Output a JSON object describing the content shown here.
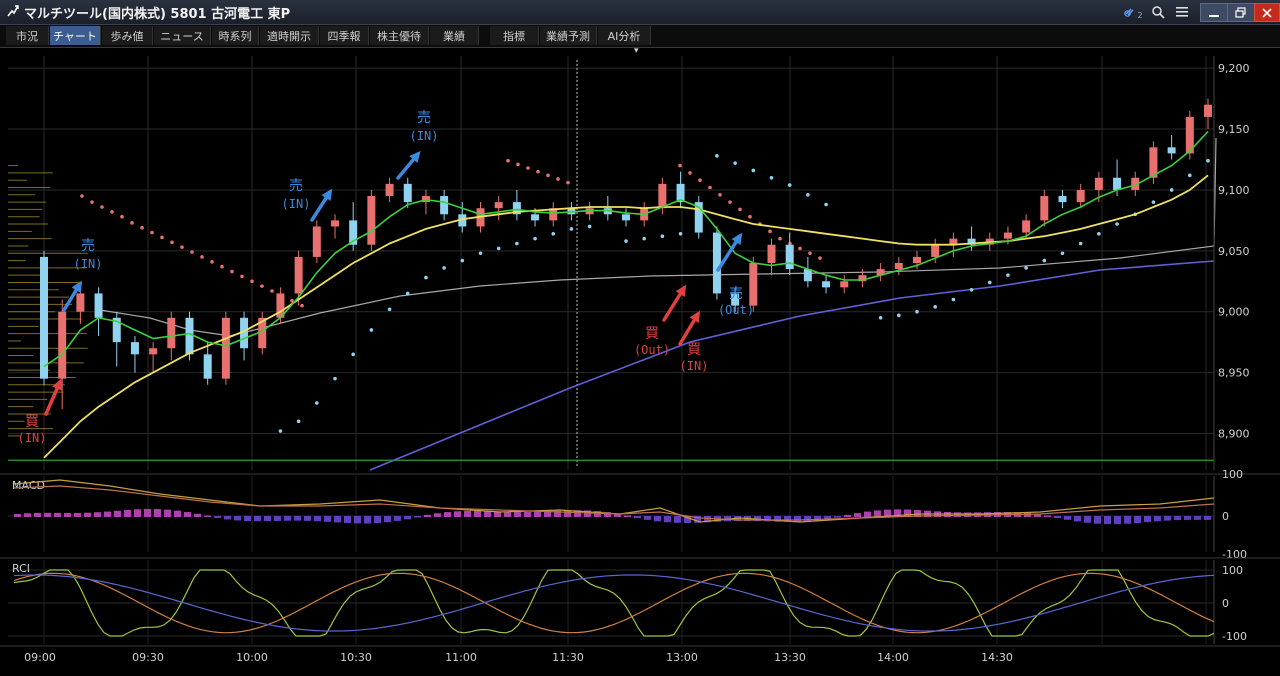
{
  "window": {
    "title": "マルチツール(国内株式) 5801 古河電工 東P",
    "controls": [
      "link-icon",
      "search-icon",
      "menu-icon",
      "minimize-icon",
      "restore-icon",
      "close-icon"
    ],
    "link_badge": "2"
  },
  "tabs": [
    "市況",
    "チャート",
    "歩み値",
    "ニュース",
    "時系列",
    "適時開示",
    "四季報",
    "株主優待",
    "業績",
    "指標",
    "業績予測",
    "AI分析"
  ],
  "active_tab": "チャート",
  "colors": {
    "up": "#e8706e",
    "down": "#8fd3f0",
    "ma_short": "#3ecf3e",
    "ma_mid": "#f0e060",
    "ma_long": "#6060d8",
    "vwap": "#a8a8a8",
    "sar": "#8fd3f0",
    "annotation_buy": "#e04040",
    "annotation_sell": "#3a8ae0"
  },
  "price_axis": [
    "9,200",
    "9,150",
    "9,100",
    "9,050",
    "9,000",
    "8,950",
    "8,900"
  ],
  "macd": {
    "label": "MACD",
    "ticks": [
      "100",
      "0",
      "-100"
    ]
  },
  "rci": {
    "label": "RCI",
    "ticks": [
      "100",
      "0",
      "-100"
    ]
  },
  "time_axis": [
    "09:00",
    "09:30",
    "10:00",
    "10:30",
    "11:00",
    "11:30",
    "13:00",
    "13:30",
    "14:00",
    "14:30"
  ],
  "annotations": [
    {
      "kind": "buy",
      "text": "買",
      "sub": "(IN)"
    },
    {
      "kind": "sell",
      "text": "売",
      "sub": "(IN)"
    },
    {
      "kind": "sell",
      "text": "売",
      "sub": "(IN)"
    },
    {
      "kind": "sell",
      "text": "売",
      "sub": "(IN)"
    },
    {
      "kind": "buy",
      "text": "買",
      "sub": "(Out)"
    },
    {
      "kind": "buy",
      "text": "買",
      "sub": "(IN)"
    },
    {
      "kind": "sell",
      "text": "売",
      "sub": "(Out)"
    }
  ],
  "chart_data": {
    "type": "candlestick",
    "symbol": "5801",
    "yaxis": {
      "range": [
        8870,
        9210
      ]
    },
    "times": [
      "09:00",
      "09:05",
      "09:10",
      "09:15",
      "09:20",
      "09:25",
      "09:30",
      "09:35",
      "09:40",
      "09:45",
      "09:50",
      "09:55",
      "10:00",
      "10:05",
      "10:10",
      "10:15",
      "10:20",
      "10:25",
      "10:30",
      "10:35",
      "10:40",
      "10:45",
      "10:50",
      "10:55",
      "11:00",
      "11:05",
      "11:10",
      "11:15",
      "11:20",
      "11:25",
      "11:30",
      "12:30",
      "12:35",
      "12:40",
      "12:45",
      "12:50",
      "12:55",
      "13:00",
      "13:05",
      "13:10",
      "13:15",
      "13:20",
      "13:25",
      "13:30",
      "13:35",
      "13:40",
      "13:45",
      "13:50",
      "13:55",
      "14:00",
      "14:05",
      "14:10",
      "14:15",
      "14:20",
      "14:25",
      "14:30",
      "14:35",
      "14:40",
      "14:45",
      "14:50",
      "14:55",
      "15:00",
      "15:05",
      "15:10",
      "15:15"
    ],
    "candles": [
      [
        9045,
        9050,
        8940,
        8945
      ],
      [
        8945,
        9010,
        8920,
        9000
      ],
      [
        9000,
        9020,
        8990,
        9015
      ],
      [
        9015,
        9020,
        8980,
        8995
      ],
      [
        8995,
        9000,
        8955,
        8975
      ],
      [
        8975,
        8980,
        8950,
        8965
      ],
      [
        8965,
        8975,
        8950,
        8970
      ],
      [
        8970,
        9000,
        8960,
        8995
      ],
      [
        8995,
        9000,
        8960,
        8965
      ],
      [
        8965,
        8975,
        8940,
        8945
      ],
      [
        8945,
        9000,
        8940,
        8995
      ],
      [
        8995,
        9000,
        8960,
        8970
      ],
      [
        8970,
        9000,
        8965,
        8995
      ],
      [
        8995,
        9020,
        8990,
        9015
      ],
      [
        9015,
        9050,
        9005,
        9045
      ],
      [
        9045,
        9075,
        9040,
        9070
      ],
      [
        9070,
        9080,
        9060,
        9075
      ],
      [
        9075,
        9090,
        9050,
        9055
      ],
      [
        9055,
        9100,
        9050,
        9095
      ],
      [
        9095,
        9110,
        9090,
        9105
      ],
      [
        9105,
        9110,
        9085,
        9090
      ],
      [
        9090,
        9100,
        9080,
        9095
      ],
      [
        9095,
        9100,
        9075,
        9080
      ],
      [
        9080,
        9090,
        9065,
        9070
      ],
      [
        9070,
        9090,
        9065,
        9085
      ],
      [
        9085,
        9095,
        9075,
        9090
      ],
      [
        9090,
        9100,
        9075,
        9080
      ],
      [
        9080,
        9085,
        9070,
        9075
      ],
      [
        9075,
        9090,
        9070,
        9085
      ],
      [
        9085,
        9090,
        9075,
        9080
      ],
      [
        9080,
        9090,
        9075,
        9085
      ],
      [
        9085,
        9095,
        9075,
        9080
      ],
      [
        9080,
        9085,
        9070,
        9075
      ],
      [
        9075,
        9090,
        9070,
        9085
      ],
      [
        9085,
        9110,
        9080,
        9105
      ],
      [
        9105,
        9115,
        9085,
        9090
      ],
      [
        9090,
        9095,
        9060,
        9065
      ],
      [
        9065,
        9070,
        9010,
        9015
      ],
      [
        9015,
        9020,
        9000,
        9005
      ],
      [
        9005,
        9045,
        9000,
        9040
      ],
      [
        9040,
        9060,
        9030,
        9055
      ],
      [
        9055,
        9065,
        9030,
        9035
      ],
      [
        9035,
        9045,
        9020,
        9025
      ],
      [
        9025,
        9030,
        9015,
        9020
      ],
      [
        9020,
        9030,
        9015,
        9025
      ],
      [
        9025,
        9035,
        9020,
        9030
      ],
      [
        9030,
        9040,
        9025,
        9035
      ],
      [
        9035,
        9045,
        9030,
        9040
      ],
      [
        9040,
        9050,
        9035,
        9045
      ],
      [
        9045,
        9060,
        9040,
        9055
      ],
      [
        9055,
        9065,
        9045,
        9060
      ],
      [
        9060,
        9070,
        9050,
        9055
      ],
      [
        9055,
        9065,
        9050,
        9060
      ],
      [
        9060,
        9070,
        9055,
        9065
      ],
      [
        9065,
        9080,
        9060,
        9075
      ],
      [
        9075,
        9100,
        9070,
        9095
      ],
      [
        9095,
        9100,
        9085,
        9090
      ],
      [
        9090,
        9105,
        9085,
        9100
      ],
      [
        9100,
        9115,
        9090,
        9110
      ],
      [
        9110,
        9125,
        9095,
        9100
      ],
      [
        9100,
        9115,
        9095,
        9110
      ],
      [
        9110,
        9140,
        9105,
        9135
      ],
      [
        9135,
        9145,
        9125,
        9130
      ],
      [
        9130,
        9165,
        9125,
        9160
      ],
      [
        9160,
        9175,
        9150,
        9170
      ]
    ],
    "ma_short": [
      8955,
      8965,
      8985,
      8995,
      8992,
      8985,
      8978,
      8980,
      8982,
      8975,
      8972,
      8978,
      8984,
      8995,
      9012,
      9032,
      9048,
      9058,
      9066,
      9078,
      9088,
      9092,
      9090,
      9085,
      9080,
      9082,
      9084,
      9082,
      9081,
      9082,
      9083,
      9083,
      9081,
      9080,
      9086,
      9092,
      9086,
      9068,
      9048,
      9040,
      9038,
      9040,
      9035,
      9030,
      9026,
      9026,
      9030,
      9034,
      9038,
      9044,
      9050,
      9054,
      9056,
      9058,
      9062,
      9072,
      9080,
      9086,
      9094,
      9100,
      9104,
      9112,
      9120,
      9132,
      9148
    ],
    "ma_mid": [
      8880,
      8895,
      8910,
      8922,
      8932,
      8942,
      8950,
      8958,
      8966,
      8972,
      8978,
      8984,
      8992,
      9000,
      9010,
      9020,
      9030,
      9040,
      9048,
      9056,
      9062,
      9068,
      9072,
      9076,
      9078,
      9080,
      9082,
      9083,
      9084,
      9085,
      9086,
      9086,
      9086,
      9085,
      9086,
      9086,
      9084,
      9080,
      9076,
      9072,
      9070,
      9068,
      9066,
      9064,
      9062,
      9060,
      9058,
      9056,
      9055,
      9055,
      9055,
      9056,
      9057,
      9058,
      9060,
      9062,
      9065,
      9068,
      9072,
      9076,
      9080,
      9086,
      9092,
      9100,
      9112
    ],
    "sar": [
      null,
      null,
      null,
      null,
      null,
      null,
      null,
      null,
      null,
      null,
      null,
      null,
      null,
      8902,
      8910,
      8925,
      8945,
      8965,
      8985,
      9002,
      9015,
      9028,
      9036,
      9042,
      9048,
      9052,
      9056,
      9060,
      9064,
      9068,
      9070,
      null,
      9058,
      9060,
      9062,
      9064,
      null,
      9128,
      9122,
      9116,
      9110,
      9104,
      9096,
      9088,
      null,
      null,
      8995,
      8997,
      9000,
      9004,
      9010,
      9018,
      9024,
      9030,
      9036,
      9042,
      9048,
      9056,
      9064,
      9072,
      9080,
      9090,
      9100,
      9112,
      9124
    ]
  }
}
